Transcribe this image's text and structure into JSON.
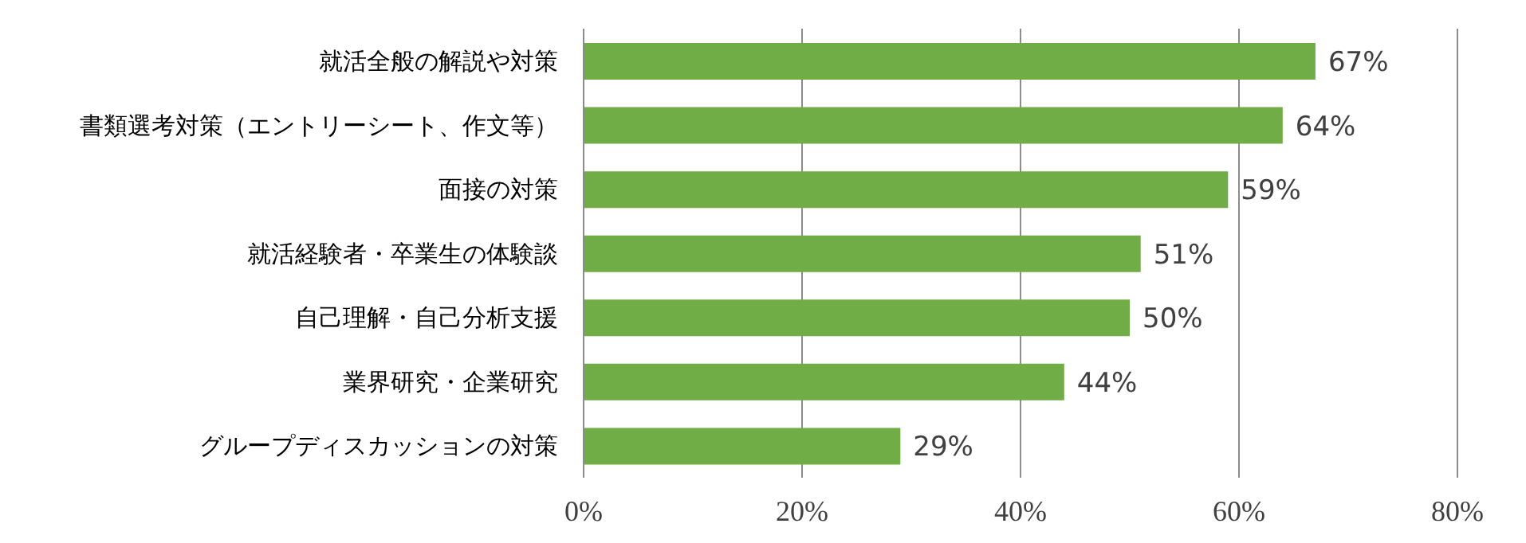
{
  "chart_data": {
    "type": "bar",
    "orientation": "horizontal",
    "categories": [
      "就活全般の解説や対策",
      "書類選考対策（エントリーシート、作文等）",
      "面接の対策",
      "就活経験者・卒業生の体験談",
      "自己理解・自己分析支援",
      "業界研究・企業研究",
      "グループディスカッションの対策"
    ],
    "values": [
      67,
      64,
      59,
      51,
      50,
      44,
      29
    ],
    "value_labels": [
      "67%",
      "64%",
      "59%",
      "51%",
      "50%",
      "44%",
      "29%"
    ],
    "color": "#70ad47",
    "xlim": [
      0,
      80
    ],
    "xticks": [
      {
        "value": 0,
        "label": "0%"
      },
      {
        "value": 20,
        "label": "20%"
      },
      {
        "value": 40,
        "label": "40%"
      },
      {
        "value": 60,
        "label": "60%"
      },
      {
        "value": 80,
        "label": "80%"
      }
    ],
    "grid": "x",
    "legend": false
  }
}
